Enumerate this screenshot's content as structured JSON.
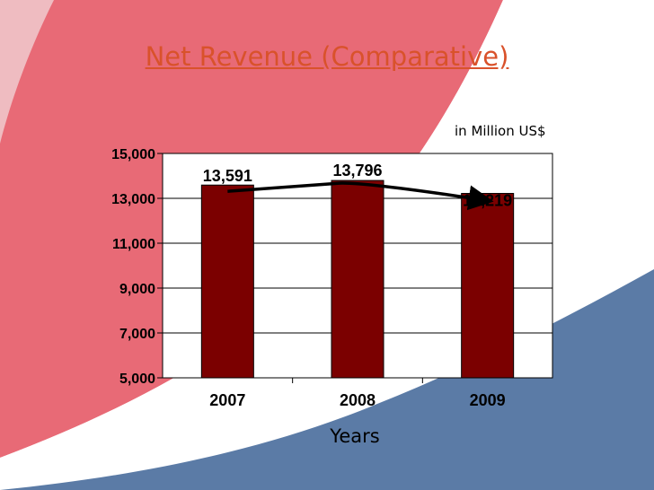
{
  "slide": {
    "title": "Net Revenue (Comparative)",
    "unit_note": "in Million US$"
  },
  "colors": {
    "title": "#d9522b",
    "bar": "#7b0000",
    "background_red": "#e86a76",
    "background_blue": "#5b7ba6",
    "plot_bg": "#ffffff",
    "grid": "#000000"
  },
  "chart_data": {
    "type": "bar",
    "title": "Net Revenue (Comparative)",
    "xlabel": "Years",
    "ylabel": "",
    "categories": [
      "2007",
      "2008",
      "2009"
    ],
    "values": [
      13591,
      13796,
      13219
    ],
    "data_labels": [
      "13,591",
      "13,796",
      "13,219"
    ],
    "ylim": [
      5000,
      15000
    ],
    "yticks": [
      5000,
      7000,
      9000,
      11000,
      13000,
      15000
    ],
    "ytick_labels": [
      "5,000",
      "7,000",
      "9,000",
      "11,000",
      "13,000",
      "15,000"
    ],
    "grid": true,
    "trend_arrow": true
  }
}
